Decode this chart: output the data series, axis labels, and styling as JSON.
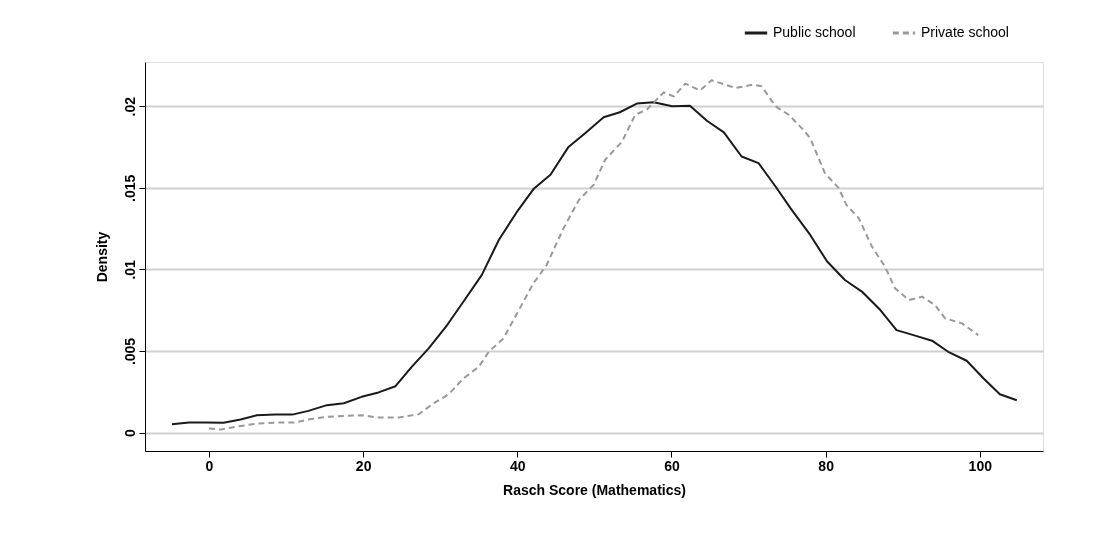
{
  "chart_data": {
    "type": "line",
    "xlabel": "Rasch Score (Mathematics)",
    "ylabel": "Density",
    "xlim": [
      -8.3,
      108.2
    ],
    "ylim": [
      -0.00113,
      0.02271
    ],
    "xticks": [
      0,
      20,
      40,
      60,
      80,
      100
    ],
    "yticks": [
      {
        "value": 0,
        "label": "0"
      },
      {
        "value": 0.005,
        "label": ".005"
      },
      {
        "value": 0.01,
        "label": ".01"
      },
      {
        "value": 0.015,
        "label": ".015"
      },
      {
        "value": 0.02,
        "label": ".02"
      }
    ],
    "grid": "y",
    "legend": "top right",
    "series": [
      {
        "name": "Public school",
        "color": "#1a1a1a",
        "line_style": "solid",
        "x": [
          -4.8,
          -2.6,
          -0.5,
          1.9,
          4.1,
          6.2,
          8.6,
          10.8,
          12.9,
          15.3,
          17.5,
          19.8,
          22.0,
          24.2,
          26.3,
          28.5,
          30.9,
          33.0,
          35.4,
          37.6,
          39.9,
          42.1,
          44.3,
          46.6,
          48.8,
          51.2,
          53.3,
          55.5,
          57.7,
          60.1,
          62.4,
          64.6,
          66.8,
          69.1,
          71.3,
          73.5,
          75.6,
          78.0,
          80.2,
          82.5,
          84.7,
          87.1,
          89.2,
          91.4,
          93.8,
          95.9,
          98.3,
          100.5,
          102.6,
          104.8
        ],
        "values": [
          0.00051,
          0.00061,
          0.00062,
          0.0006,
          0.0008,
          0.00106,
          0.0011,
          0.0011,
          0.00133,
          0.00168,
          0.0018,
          0.00219,
          0.00246,
          0.00284,
          0.00403,
          0.00516,
          0.00659,
          0.00802,
          0.00966,
          0.0118,
          0.01349,
          0.01492,
          0.0158,
          0.01748,
          0.01835,
          0.01932,
          0.01963,
          0.02016,
          0.02024,
          0.02,
          0.02003,
          0.01911,
          0.0184,
          0.01692,
          0.01651,
          0.01508,
          0.01365,
          0.01211,
          0.01048,
          0.00935,
          0.00864,
          0.00751,
          0.00628,
          0.00597,
          0.00563,
          0.00495,
          0.0044,
          0.00331,
          0.00235,
          0.00198
        ]
      },
      {
        "name": "Private school",
        "color": "#999999",
        "line_style": "dashed",
        "x": [
          0,
          1.5,
          3.9,
          6.2,
          8.6,
          11.0,
          13.1,
          15.3,
          17.5,
          19.8,
          22.0,
          24.6,
          27.2,
          29.1,
          31.1,
          33.0,
          35.0,
          36.3,
          38.2,
          40.2,
          42.1,
          43.8,
          46.0,
          48.0,
          49.9,
          51.4,
          53.6,
          55.3,
          56.8,
          59.0,
          60.3,
          61.8,
          63.7,
          65.2,
          67.0,
          68.3,
          70.6,
          71.7,
          73.5,
          75.2,
          76.9,
          78.0,
          79.9,
          81.7,
          82.7,
          84.3,
          86.0,
          87.7,
          89.0,
          90.8,
          92.5,
          94.2,
          95.5,
          97.7,
          99.8
        ],
        "values": [
          0.00025,
          0.00018,
          0.00039,
          0.00055,
          0.00061,
          0.00061,
          0.00082,
          0.00096,
          0.00102,
          0.00106,
          0.00092,
          0.00092,
          0.00112,
          0.00178,
          0.00235,
          0.00331,
          0.00403,
          0.00495,
          0.00577,
          0.00751,
          0.00915,
          0.01027,
          0.01252,
          0.01426,
          0.01518,
          0.01672,
          0.01784,
          0.01948,
          0.01979,
          0.02085,
          0.0206,
          0.02138,
          0.02097,
          0.02159,
          0.02132,
          0.02112,
          0.02132,
          0.02122,
          0.02,
          0.01948,
          0.01866,
          0.01805,
          0.0159,
          0.01498,
          0.01395,
          0.01314,
          0.0114,
          0.01017,
          0.00884,
          0.00812,
          0.00833,
          0.00781,
          0.007,
          0.00669,
          0.00597
        ]
      }
    ]
  }
}
